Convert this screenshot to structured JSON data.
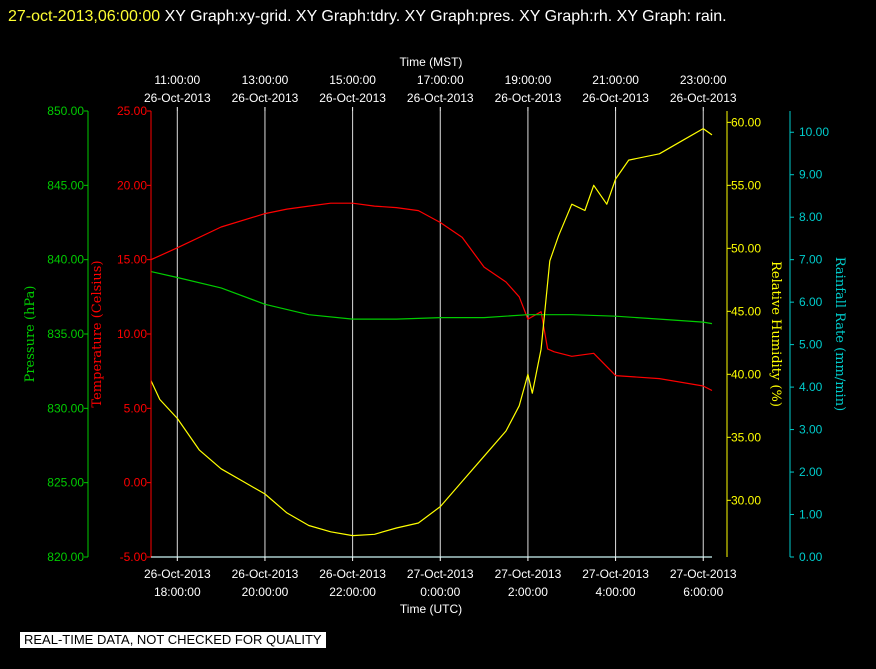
{
  "header": {
    "timestamp": "27-oct-2013,06:00:00",
    "graphs": "XY Graph:xy-grid.  XY Graph:tdry.  XY Graph:pres.  XY Graph:rh.  XY Graph: rain."
  },
  "footer": {
    "quality_note": "REAL-TIME DATA, NOT CHECKED FOR QUALITY"
  },
  "chart_data": {
    "type": "line",
    "grid": true,
    "x_range_hours_utc": [
      17.4,
      30.2
    ],
    "top_axis": {
      "label": "Time (MST)",
      "ticks": [
        {
          "time": "11:00:00",
          "date": "26-Oct-2013"
        },
        {
          "time": "13:00:00",
          "date": "26-Oct-2013"
        },
        {
          "time": "15:00:00",
          "date": "26-Oct-2013"
        },
        {
          "time": "17:00:00",
          "date": "26-Oct-2013"
        },
        {
          "time": "19:00:00",
          "date": "26-Oct-2013"
        },
        {
          "time": "21:00:00",
          "date": "26-Oct-2013"
        },
        {
          "time": "23:00:00",
          "date": "26-Oct-2013"
        }
      ]
    },
    "bottom_axis": {
      "label": "Time (UTC)",
      "ticks": [
        {
          "date": "26-Oct-2013",
          "time": "18:00:00"
        },
        {
          "date": "26-Oct-2013",
          "time": "20:00:00"
        },
        {
          "date": "26-Oct-2013",
          "time": "22:00:00"
        },
        {
          "date": "27-Oct-2013",
          "time": "0:00:00"
        },
        {
          "date": "27-Oct-2013",
          "time": "2:00:00"
        },
        {
          "date": "27-Oct-2013",
          "time": "4:00:00"
        },
        {
          "date": "27-Oct-2013",
          "time": "6:00:00"
        }
      ]
    },
    "axes": {
      "pressure": {
        "label": "Pressure (hPa)",
        "range": [
          820,
          850
        ],
        "ticks": [
          "850.00",
          "845.00",
          "840.00",
          "835.00",
          "830.00",
          "825.00",
          "820.00"
        ]
      },
      "temperature": {
        "label": "Temperature (Celsius)",
        "range": [
          -5,
          25
        ],
        "ticks": [
          "25.00",
          "20.00",
          "15.00",
          "10.00",
          "5.00",
          "0.00",
          "-5.00"
        ]
      },
      "humidity": {
        "label": "Relative Humidity (%)",
        "range": [
          25.5,
          60.9
        ],
        "ticks": [
          "60.00",
          "55.00",
          "50.00",
          "45.00",
          "40.00",
          "35.00",
          "30.00"
        ]
      },
      "rain": {
        "label": "Rainfall Rate (mm/min)",
        "range": [
          0,
          10.5
        ],
        "ticks": [
          "10.00",
          "9.00",
          "8.00",
          "7.00",
          "6.00",
          "5.00",
          "4.00",
          "3.00",
          "2.00",
          "1.00",
          "0.00"
        ]
      }
    },
    "colors": {
      "temperature": "#ff0000",
      "pressure": "#00cc00",
      "humidity": "#ffff00",
      "rain": "#00cccc",
      "grid": "#dddddd"
    },
    "series": [
      {
        "name": "Temperature (Celsius)",
        "axis": "temperature",
        "x": [
          17.4,
          18.0,
          19.0,
          20.0,
          20.5,
          21.0,
          21.5,
          22.0,
          22.5,
          23.0,
          23.5,
          24.0,
          24.5,
          25.0,
          25.5,
          25.8,
          26.0,
          26.3,
          26.45,
          26.6,
          27.0,
          27.5,
          28.0,
          29.0,
          30.0,
          30.2
        ],
        "y": [
          15.0,
          15.8,
          17.2,
          18.1,
          18.4,
          18.6,
          18.8,
          18.8,
          18.6,
          18.5,
          18.3,
          17.5,
          16.5,
          14.5,
          13.5,
          12.5,
          11.0,
          11.5,
          9.0,
          8.8,
          8.5,
          8.7,
          7.2,
          7.0,
          6.5,
          6.2
        ]
      },
      {
        "name": "Pressure (hPa)",
        "axis": "pressure",
        "x": [
          17.4,
          18.0,
          19.0,
          20.0,
          21.0,
          22.0,
          23.0,
          24.0,
          25.0,
          26.0,
          27.0,
          28.0,
          29.0,
          30.0,
          30.2
        ],
        "y": [
          839.2,
          838.8,
          838.1,
          837.0,
          836.3,
          836.0,
          836.0,
          836.1,
          836.1,
          836.3,
          836.3,
          836.2,
          836.0,
          835.8,
          835.7
        ]
      },
      {
        "name": "Relative Humidity (%)",
        "axis": "humidity",
        "x": [
          17.4,
          17.6,
          18.0,
          18.5,
          19.0,
          19.5,
          20.0,
          20.5,
          21.0,
          21.5,
          22.0,
          22.5,
          23.0,
          23.5,
          24.0,
          24.5,
          25.0,
          25.5,
          25.8,
          26.0,
          26.1,
          26.3,
          26.5,
          26.7,
          27.0,
          27.3,
          27.5,
          27.8,
          28.0,
          28.3,
          29.0,
          29.5,
          30.0,
          30.2
        ],
        "y": [
          39.5,
          38.0,
          36.5,
          34.0,
          32.5,
          31.5,
          30.5,
          29.0,
          28.0,
          27.5,
          27.2,
          27.3,
          27.8,
          28.2,
          29.5,
          31.5,
          33.5,
          35.5,
          37.5,
          40.0,
          38.5,
          42.0,
          49.0,
          51.0,
          53.5,
          53.0,
          55.0,
          53.5,
          55.5,
          57.0,
          57.5,
          58.5,
          59.5,
          59.0
        ]
      },
      {
        "name": "Rainfall Rate (mm/min)",
        "axis": "rain",
        "x": [
          17.4,
          30.2
        ],
        "y": [
          0.0,
          0.0
        ]
      }
    ]
  }
}
